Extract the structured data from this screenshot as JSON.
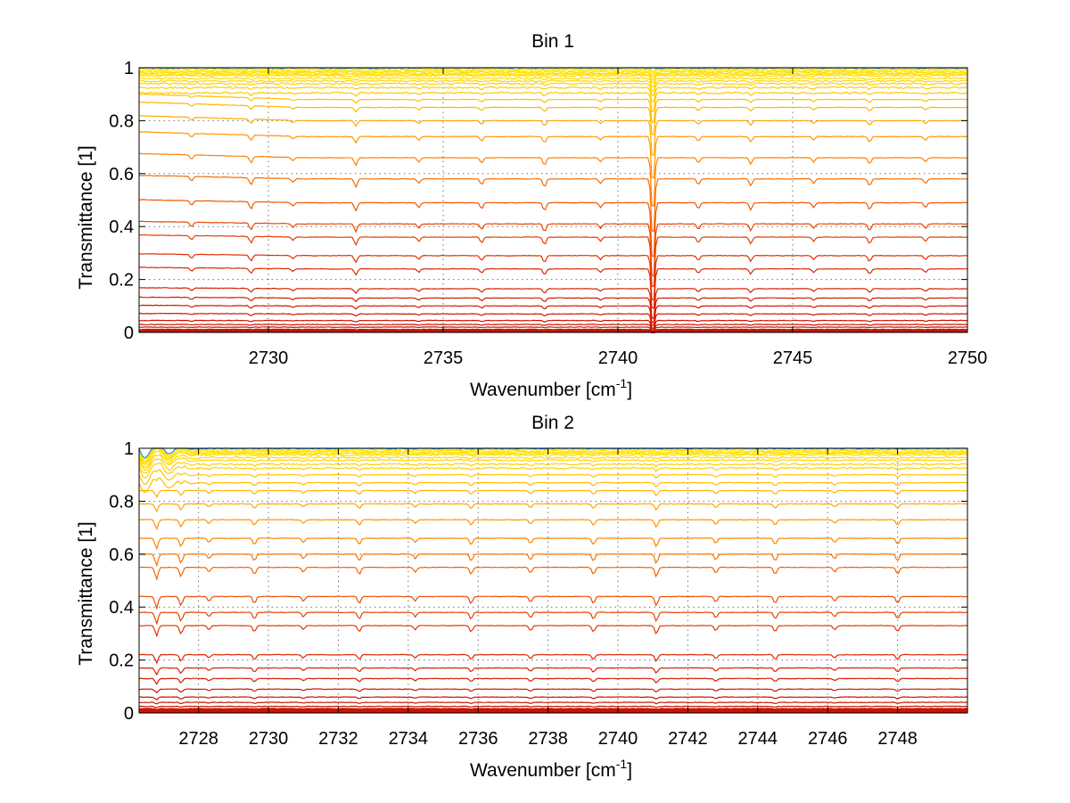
{
  "figure": {
    "ylabel": "Transmittance [1]",
    "xlabel_main": "Wavenumber [cm",
    "xlabel_sup": "-1",
    "xlabel_end": "]"
  },
  "chart_data": [
    {
      "type": "line",
      "title": "Bin 1",
      "xlabel": "Wavenumber [cm-1]",
      "ylabel": "Transmittance [1]",
      "xlim": [
        2726.3,
        2750
      ],
      "ylim": [
        0,
        1
      ],
      "xticks": [
        2730,
        2735,
        2740,
        2745,
        2750
      ],
      "yticks": [
        0,
        0.2,
        0.4,
        0.6,
        0.8,
        1
      ],
      "grid": true,
      "colormap": "autumn-like (red at low transmittance to yellow at high transmittance, cyan/blue near 1)",
      "curve_levels": [
        0.003,
        0.006,
        0.01,
        0.02,
        0.03,
        0.045,
        0.07,
        0.1,
        0.13,
        0.165,
        0.24,
        0.29,
        0.36,
        0.41,
        0.49,
        0.58,
        0.66,
        0.74,
        0.8,
        0.85,
        0.88,
        0.905,
        0.925,
        0.94,
        0.95,
        0.96,
        0.97,
        0.975,
        0.98,
        0.985,
        0.99,
        0.995,
        1.0
      ],
      "absorption_lines": [
        {
          "x": 2727.8,
          "depth": 0.02
        },
        {
          "x": 2729.5,
          "depth": 0.03
        },
        {
          "x": 2730.7,
          "depth": 0.015
        },
        {
          "x": 2732.5,
          "depth": 0.035
        },
        {
          "x": 2734.3,
          "depth": 0.02
        },
        {
          "x": 2736.1,
          "depth": 0.025
        },
        {
          "x": 2737.9,
          "depth": 0.035
        },
        {
          "x": 2739.5,
          "depth": 0.02
        },
        {
          "x": 2741.0,
          "depth": 0.28
        },
        {
          "x": 2742.3,
          "depth": 0.025
        },
        {
          "x": 2743.8,
          "depth": 0.03
        },
        {
          "x": 2745.6,
          "depth": 0.02
        },
        {
          "x": 2747.2,
          "depth": 0.03
        },
        {
          "x": 2748.8,
          "depth": 0.02
        }
      ]
    },
    {
      "type": "line",
      "title": "Bin 2",
      "xlabel": "Wavenumber [cm-1]",
      "ylabel": "Transmittance [1]",
      "xlim": [
        2726.3,
        2750
      ],
      "ylim": [
        0,
        1
      ],
      "xticks": [
        2728,
        2730,
        2732,
        2734,
        2736,
        2738,
        2740,
        2742,
        2744,
        2746,
        2748
      ],
      "yticks": [
        0,
        0.2,
        0.4,
        0.6,
        0.8,
        1
      ],
      "grid": true,
      "colormap": "autumn-like (red at low transmittance to yellow at high transmittance, cyan/blue near 1)",
      "curve_levels": [
        0.003,
        0.006,
        0.01,
        0.015,
        0.025,
        0.04,
        0.06,
        0.09,
        0.13,
        0.17,
        0.22,
        0.33,
        0.38,
        0.44,
        0.55,
        0.6,
        0.66,
        0.73,
        0.79,
        0.84,
        0.87,
        0.9,
        0.925,
        0.94,
        0.955,
        0.965,
        0.975,
        0.98,
        0.985,
        0.99,
        0.995,
        1.0
      ],
      "absorption_lines": [
        {
          "x": 2726.8,
          "depth": 0.05
        },
        {
          "x": 2727.5,
          "depth": 0.04
        },
        {
          "x": 2728.3,
          "depth": 0.02
        },
        {
          "x": 2729.6,
          "depth": 0.03
        },
        {
          "x": 2731.0,
          "depth": 0.02
        },
        {
          "x": 2732.6,
          "depth": 0.03
        },
        {
          "x": 2734.2,
          "depth": 0.02
        },
        {
          "x": 2735.8,
          "depth": 0.03
        },
        {
          "x": 2737.5,
          "depth": 0.025
        },
        {
          "x": 2739.3,
          "depth": 0.03
        },
        {
          "x": 2741.1,
          "depth": 0.04
        },
        {
          "x": 2742.8,
          "depth": 0.025
        },
        {
          "x": 2744.5,
          "depth": 0.03
        },
        {
          "x": 2746.2,
          "depth": 0.02
        },
        {
          "x": 2748.0,
          "depth": 0.03
        }
      ]
    }
  ]
}
